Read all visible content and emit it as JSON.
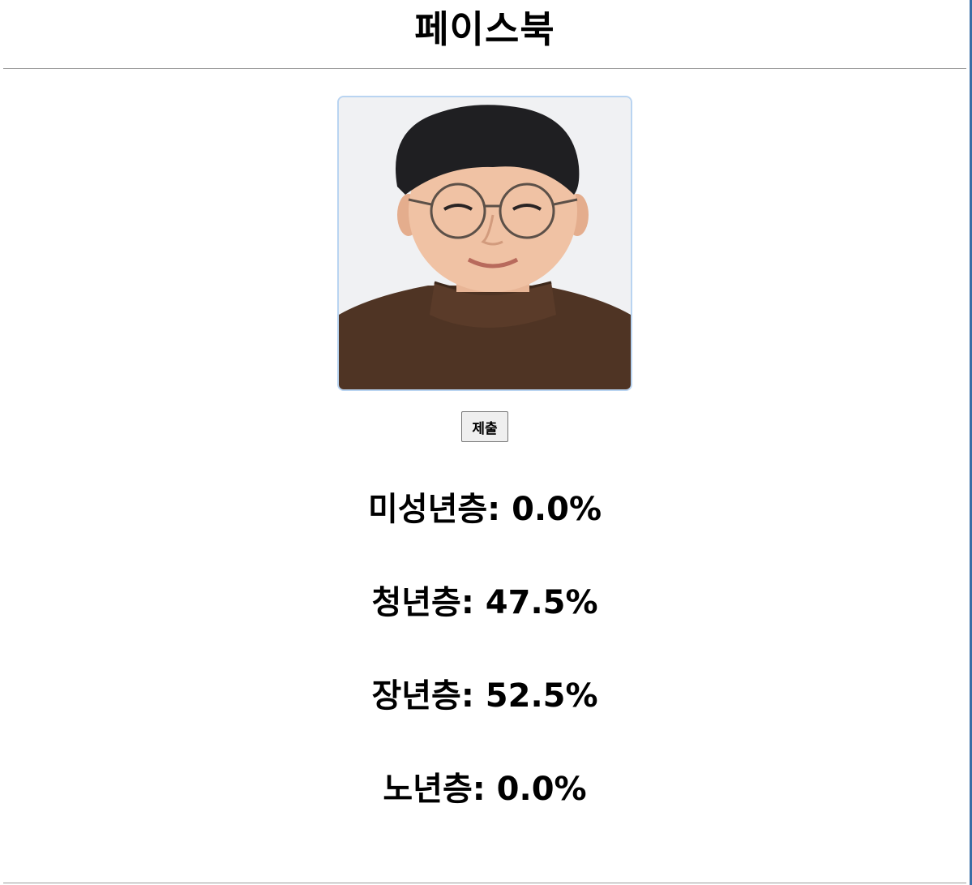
{
  "header": {
    "title": "페이스북"
  },
  "photo": {
    "alt": "사진"
  },
  "form": {
    "submit_label": "제출"
  },
  "results": [
    {
      "label": "미성년층",
      "value": "0.0%",
      "text": "미성년층: 0.0%"
    },
    {
      "label": "청년층",
      "value": "47.5%",
      "text": "청년층: 47.5%"
    },
    {
      "label": "장년층",
      "value": "52.5%",
      "text": "장년층: 52.5%"
    },
    {
      "label": "노년층",
      "value": "0.0%",
      "text": "노년층: 0.0%"
    }
  ],
  "colors": {
    "photo_border": "#b9d4f1",
    "divider": "#9a9a9a",
    "right_edge": "#3a6ea5"
  }
}
